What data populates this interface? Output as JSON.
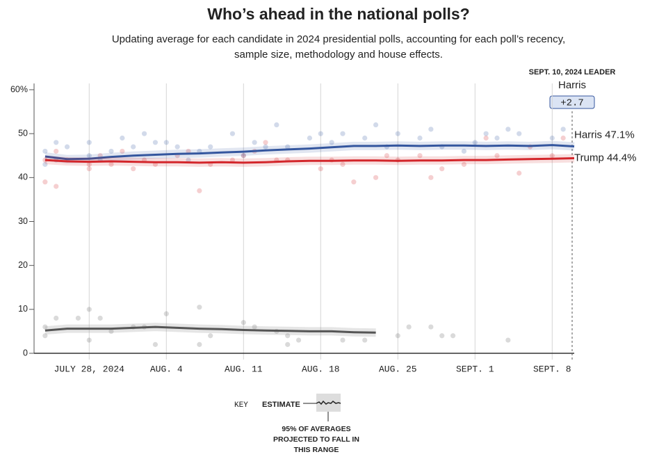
{
  "chart_data": {
    "type": "line",
    "title": "Who’s ahead in the national polls?",
    "subtitle": [
      "Updating average for each candidate in 2024 presidential polls, accounting for each poll’s recency,",
      "sample size, methodology and house effects."
    ],
    "leader": {
      "heading": "SEPT. 10, 2024 LEADER",
      "name": "Harris",
      "margin": "+2.7"
    },
    "x": [
      "2024-07-24",
      "2024-07-26",
      "2024-07-28",
      "2024-07-30",
      "2024-08-01",
      "2024-08-03",
      "2024-08-05",
      "2024-08-07",
      "2024-08-09",
      "2024-08-11",
      "2024-08-13",
      "2024-08-15",
      "2024-08-17",
      "2024-08-19",
      "2024-08-21",
      "2024-08-23",
      "2024-08-25",
      "2024-08-27",
      "2024-08-29",
      "2024-08-31",
      "2024-09-02",
      "2024-09-04",
      "2024-09-06",
      "2024-09-08",
      "2024-09-10"
    ],
    "xlim": [
      "2024-07-23",
      "2024-09-10"
    ],
    "xticks": [
      {
        "value": "2024-07-28",
        "label": "JULY 28, 2024"
      },
      {
        "value": "2024-08-04",
        "label": "AUG. 4"
      },
      {
        "value": "2024-08-11",
        "label": "AUG. 11"
      },
      {
        "value": "2024-08-18",
        "label": "AUG. 18"
      },
      {
        "value": "2024-08-25",
        "label": "AUG. 25"
      },
      {
        "value": "2024-09-01",
        "label": "SEPT. 1"
      },
      {
        "value": "2024-09-08",
        "label": "SEPT. 8"
      }
    ],
    "ylim": [
      0,
      60
    ],
    "yticks": [
      0,
      10,
      20,
      30,
      40,
      50,
      {
        "value": 60,
        "label": "60%"
      }
    ],
    "series": [
      {
        "name": "Harris",
        "end_label": "Harris 47.1%",
        "color": "#34569e",
        "values": [
          44.8,
          44.2,
          44.3,
          44.7,
          45.0,
          45.2,
          45.4,
          45.5,
          45.7,
          45.9,
          46.2,
          46.4,
          46.6,
          46.9,
          47.2,
          47.2,
          47.3,
          47.2,
          47.3,
          47.3,
          47.2,
          47.3,
          47.2,
          47.4,
          47.1
        ],
        "poll_x": [
          "2024-07-24",
          "2024-07-24",
          "2024-07-25",
          "2024-07-25",
          "2024-07-26",
          "2024-07-28",
          "2024-07-28",
          "2024-07-29",
          "2024-07-30",
          "2024-07-31",
          "2024-08-01",
          "2024-08-02",
          "2024-08-03",
          "2024-08-04",
          "2024-08-05",
          "2024-08-06",
          "2024-08-07",
          "2024-08-08",
          "2024-08-10",
          "2024-08-11",
          "2024-08-12",
          "2024-08-13",
          "2024-08-14",
          "2024-08-15",
          "2024-08-17",
          "2024-08-18",
          "2024-08-19",
          "2024-08-20",
          "2024-08-22",
          "2024-08-23",
          "2024-08-24",
          "2024-08-25",
          "2024-08-27",
          "2024-08-28",
          "2024-08-29",
          "2024-08-31",
          "2024-09-01",
          "2024-09-02",
          "2024-09-03",
          "2024-09-04",
          "2024-09-05",
          "2024-09-08",
          "2024-09-09"
        ],
        "poll_values": [
          46,
          43,
          48,
          44,
          47,
          48,
          45,
          44,
          46,
          49,
          47,
          50,
          48,
          48,
          47,
          44,
          46,
          47,
          50,
          45,
          48,
          47,
          52,
          47,
          49,
          50,
          48,
          50,
          49,
          52,
          47,
          50,
          49,
          51,
          47,
          46,
          48,
          50,
          49,
          51,
          50,
          49,
          51
        ]
      },
      {
        "name": "Trump",
        "end_label": "Trump 44.4%",
        "color": "#d3262b",
        "values": [
          44.0,
          43.7,
          43.6,
          43.7,
          43.6,
          43.5,
          43.5,
          43.4,
          43.5,
          43.4,
          43.5,
          43.7,
          43.8,
          43.8,
          43.9,
          43.9,
          43.8,
          43.9,
          43.9,
          44.0,
          44.0,
          44.1,
          44.2,
          44.3,
          44.4
        ],
        "poll_x": [
          "2024-07-24",
          "2024-07-24",
          "2024-07-25",
          "2024-07-25",
          "2024-07-26",
          "2024-07-28",
          "2024-07-28",
          "2024-07-29",
          "2024-07-30",
          "2024-07-31",
          "2024-08-01",
          "2024-08-02",
          "2024-08-03",
          "2024-08-05",
          "2024-08-06",
          "2024-08-07",
          "2024-08-08",
          "2024-08-10",
          "2024-08-11",
          "2024-08-12",
          "2024-08-13",
          "2024-08-14",
          "2024-08-15",
          "2024-08-18",
          "2024-08-19",
          "2024-08-20",
          "2024-08-21",
          "2024-08-23",
          "2024-08-24",
          "2024-08-25",
          "2024-08-27",
          "2024-08-28",
          "2024-08-29",
          "2024-08-31",
          "2024-09-02",
          "2024-09-03",
          "2024-09-05",
          "2024-09-06",
          "2024-09-08",
          "2024-09-09"
        ],
        "poll_values": [
          44,
          39,
          38,
          46,
          44,
          42,
          43,
          45,
          43,
          46,
          42,
          44,
          43,
          45,
          46,
          37,
          43,
          44,
          45,
          46,
          48,
          44,
          44,
          42,
          44,
          43,
          39,
          40,
          45,
          44,
          45,
          40,
          42,
          43,
          49,
          45,
          41,
          47,
          45,
          49
        ]
      },
      {
        "color": "#555555",
        "values": [
          5.2,
          5.6,
          5.6,
          5.6,
          5.8,
          6.0,
          5.8,
          5.6,
          5.5,
          5.3,
          5.2,
          5.1,
          5.0,
          5.0,
          4.8,
          4.7,
          null,
          null,
          null,
          null,
          null,
          null,
          null,
          null,
          null
        ],
        "poll_x": [
          "2024-07-24",
          "2024-07-24",
          "2024-07-25",
          "2024-07-27",
          "2024-07-28",
          "2024-07-28",
          "2024-07-29",
          "2024-07-30",
          "2024-08-01",
          "2024-08-02",
          "2024-08-03",
          "2024-08-04",
          "2024-08-07",
          "2024-08-07",
          "2024-08-08",
          "2024-08-11",
          "2024-08-12",
          "2024-08-14",
          "2024-08-15",
          "2024-08-15",
          "2024-08-16",
          "2024-08-20",
          "2024-08-22",
          "2024-08-25",
          "2024-08-26",
          "2024-08-28",
          "2024-08-29",
          "2024-08-30",
          "2024-09-04"
        ],
        "poll_values": [
          6,
          4,
          8,
          8,
          10,
          3,
          8,
          5,
          6,
          6,
          2,
          9,
          10.5,
          2,
          4,
          7,
          6,
          5,
          4,
          2,
          3,
          3,
          3,
          4,
          6,
          6,
          4,
          4,
          3
        ]
      }
    ],
    "key": {
      "title": "KEY",
      "estimate": "ESTIMATE",
      "range_note": [
        "95% OF AVERAGES",
        "PROJECTED TO FALL IN",
        "THIS RANGE"
      ]
    }
  }
}
